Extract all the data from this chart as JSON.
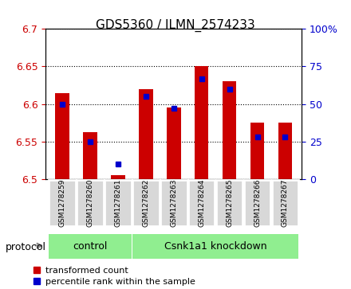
{
  "title": "GDS5360 / ILMN_2574233",
  "samples": [
    "GSM1278259",
    "GSM1278260",
    "GSM1278261",
    "GSM1278262",
    "GSM1278263",
    "GSM1278264",
    "GSM1278265",
    "GSM1278266",
    "GSM1278267"
  ],
  "red_values": [
    6.615,
    6.563,
    6.505,
    6.62,
    6.595,
    6.651,
    6.63,
    6.575,
    6.575
  ],
  "blue_percentiles": [
    50,
    25,
    10,
    55,
    47,
    67,
    60,
    28,
    28
  ],
  "ylim": [
    6.5,
    6.7
  ],
  "yticks_left": [
    6.5,
    6.55,
    6.6,
    6.65,
    6.7
  ],
  "yticks_right": [
    0,
    25,
    50,
    75,
    100
  ],
  "protocol_label": "protocol",
  "legend_red": "transformed count",
  "legend_blue": "percentile rank within the sample",
  "red_color": "#cc0000",
  "blue_color": "#0000cc",
  "bar_width": 0.5,
  "base_value": 6.5
}
